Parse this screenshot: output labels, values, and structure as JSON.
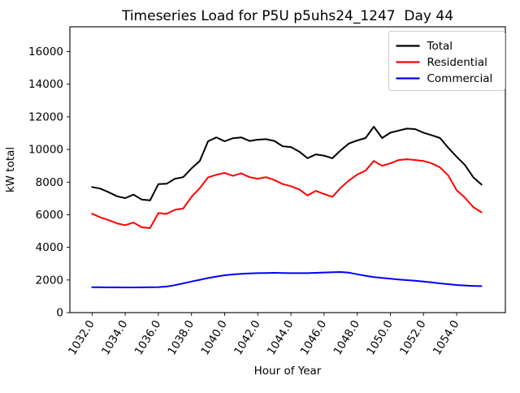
{
  "figure": {
    "title": "Timeseries Load for P5U p5uhs24_1247  Day 44",
    "xlabel": "Hour of Year",
    "ylabel": "kW total"
  },
  "chart_data": {
    "type": "line",
    "title": "Timeseries Load for P5U p5uhs24_1247  Day 44",
    "xlabel": "Hour of Year",
    "ylabel": "kW total",
    "grid": false,
    "legend_position": "upper right",
    "xlim": [
      1030.66,
      1056.94
    ],
    "ylim": [
      0,
      17520
    ],
    "x_tick_values": [
      1032,
      1034,
      1036,
      1038,
      1040,
      1042,
      1044,
      1046,
      1048,
      1050,
      1052,
      1054
    ],
    "x_tick_labels": [
      "1032.0",
      "1034.0",
      "1036.0",
      "1038.0",
      "1040.0",
      "1042.0",
      "1044.0",
      "1046.0",
      "1048.0",
      "1050.0",
      "1052.0",
      "1054.0"
    ],
    "y_tick_values": [
      0,
      2000,
      4000,
      6000,
      8000,
      10000,
      12000,
      14000,
      16000
    ],
    "y_tick_labels": [
      "0",
      "2000",
      "4000",
      "6000",
      "8000",
      "10000",
      "12000",
      "14000",
      "16000"
    ],
    "x": [
      1032.0,
      1032.5,
      1033.0,
      1033.5,
      1034.0,
      1034.5,
      1035.0,
      1035.5,
      1036.0,
      1036.5,
      1037.0,
      1037.5,
      1038.0,
      1038.5,
      1039.0,
      1039.5,
      1040.0,
      1040.5,
      1041.0,
      1041.5,
      1042.0,
      1042.5,
      1043.0,
      1043.5,
      1044.0,
      1044.5,
      1045.0,
      1045.5,
      1046.0,
      1046.5,
      1047.0,
      1047.5,
      1048.0,
      1048.5,
      1049.0,
      1049.5,
      1050.0,
      1050.5,
      1051.0,
      1051.5,
      1052.0,
      1052.5,
      1053.0,
      1053.5,
      1054.0,
      1054.5,
      1055.0,
      1055.5
    ],
    "series": [
      {
        "name": "Total",
        "color": "#000000",
        "values": [
          7700,
          7600,
          7380,
          7130,
          7020,
          7230,
          6930,
          6880,
          7880,
          7900,
          8210,
          8300,
          8840,
          9300,
          10500,
          10740,
          10500,
          10690,
          10740,
          10520,
          10600,
          10630,
          10520,
          10200,
          10150,
          9870,
          9460,
          9700,
          9620,
          9460,
          9950,
          10370,
          10550,
          10700,
          11400,
          10700,
          11030,
          11160,
          11280,
          11250,
          11030,
          10870,
          10700,
          10100,
          9550,
          9050,
          8300,
          7850
        ]
      },
      {
        "name": "Residential",
        "color": "#ff0000",
        "values": [
          6060,
          5840,
          5670,
          5470,
          5360,
          5520,
          5230,
          5180,
          6100,
          6050,
          6300,
          6380,
          7100,
          7630,
          8290,
          8450,
          8560,
          8380,
          8540,
          8300,
          8210,
          8300,
          8130,
          7880,
          7750,
          7550,
          7180,
          7460,
          7270,
          7100,
          7650,
          8100,
          8460,
          8700,
          9300,
          9000,
          9150,
          9350,
          9400,
          9350,
          9300,
          9150,
          8900,
          8400,
          7500,
          7050,
          6470,
          6150
        ]
      },
      {
        "name": "Commercial",
        "color": "#0000ff",
        "values": [
          1560,
          1555,
          1550,
          1550,
          1545,
          1545,
          1550,
          1555,
          1565,
          1600,
          1680,
          1790,
          1905,
          2010,
          2120,
          2210,
          2290,
          2340,
          2380,
          2400,
          2420,
          2430,
          2440,
          2430,
          2420,
          2420,
          2420,
          2440,
          2460,
          2480,
          2490,
          2450,
          2350,
          2260,
          2180,
          2130,
          2080,
          2030,
          1990,
          1950,
          1900,
          1850,
          1790,
          1740,
          1690,
          1660,
          1640,
          1625
        ]
      }
    ]
  }
}
